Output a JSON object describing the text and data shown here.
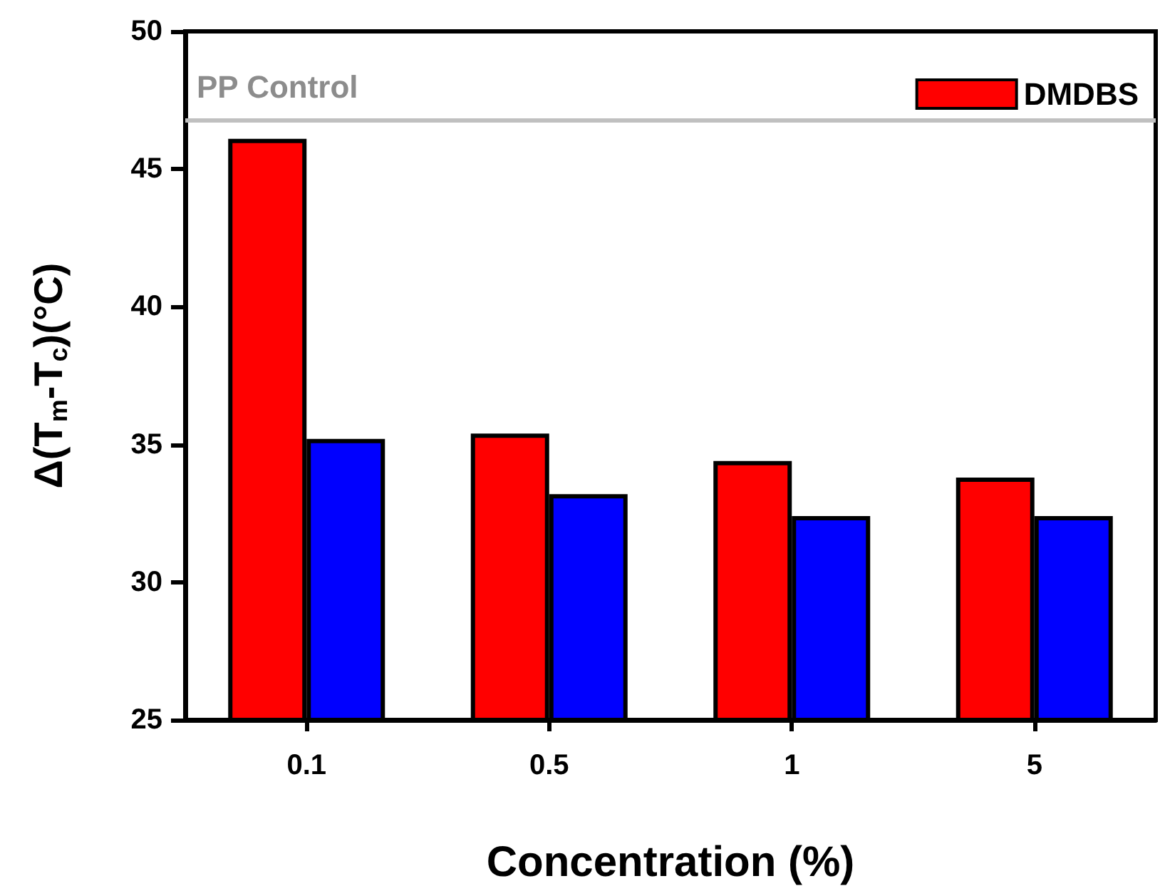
{
  "chart_data": {
    "type": "bar",
    "categories": [
      "0.1",
      "0.5",
      "1",
      "5"
    ],
    "series": [
      {
        "name": "DMDBS",
        "color": "#ff0000",
        "values": [
          46.1,
          35.4,
          34.4,
          33.8
        ]
      },
      {
        "color": "#0000ff",
        "values": [
          35.2,
          33.2,
          32.4,
          32.4
        ]
      }
    ],
    "xlabel": "Concentration (%)",
    "ylabel": "Δ(T$_{m}$-T$_{c}$)(°C)",
    "ylim": [
      25,
      50
    ],
    "yticks": [
      25,
      30,
      35,
      40,
      45,
      50
    ],
    "ref_lines": [
      {
        "axis": "y",
        "value": 46.8,
        "label": "PP Control",
        "color": "#c0c0c0"
      }
    ],
    "legend": "top right",
    "grid": false
  }
}
